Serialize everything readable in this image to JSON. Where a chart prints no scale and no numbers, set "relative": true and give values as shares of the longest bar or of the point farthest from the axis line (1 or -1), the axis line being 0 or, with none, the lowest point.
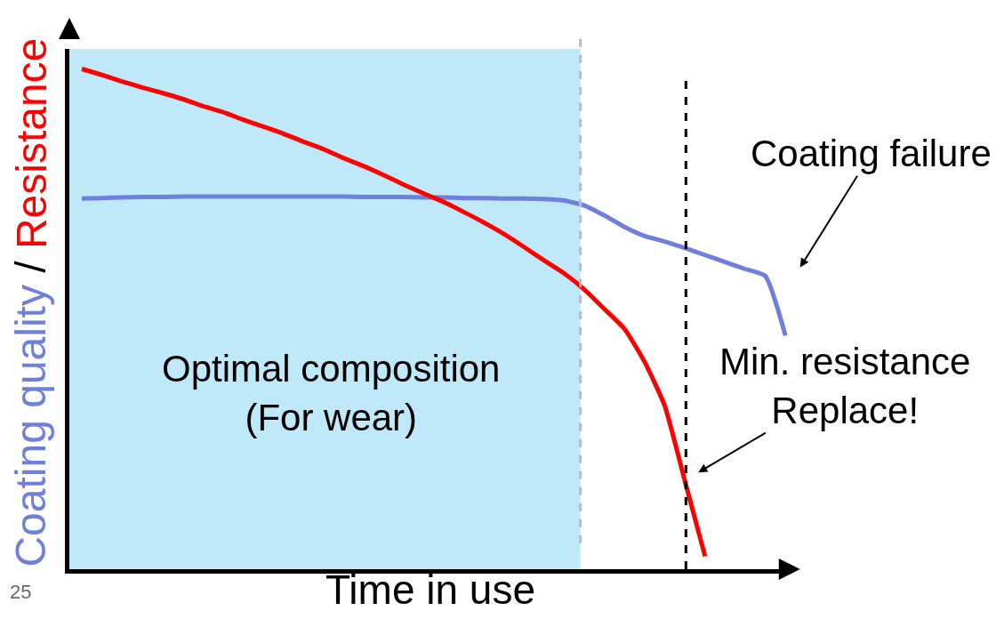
{
  "chart_data": {
    "type": "line",
    "relative": true,
    "xlabel": "Time in use",
    "ylabel": "Coating quality / Resistance",
    "grid": false,
    "legend": false,
    "line_style": "solid",
    "marker": "none",
    "categories": [
      null,
      null,
      null,
      null,
      null,
      null,
      null,
      null,
      null,
      null,
      null,
      null,
      null,
      null,
      null,
      null,
      null,
      null,
      null,
      null,
      null,
      null,
      null,
      null,
      null,
      null,
      null,
      null,
      null,
      null,
      null,
      null,
      null,
      null,
      null,
      null
    ],
    "series": [
      {
        "color": "#6f7fdb",
        "values": [
          0.741,
          0.742,
          0.743,
          0.744,
          0.744,
          0.745,
          0.745,
          0.745,
          0.745,
          0.745,
          0.745,
          0.745,
          0.745,
          0.745,
          0.744,
          0.744,
          0.744,
          0.743,
          0.743,
          0.742,
          0.742,
          0.741,
          0.741,
          0.74,
          0.737,
          0.727,
          0.707,
          0.684,
          0.666,
          0.655,
          0.642,
          0.628,
          0.614,
          0.6,
          0.586,
          0.467
        ]
      },
      {
        "color": "#ff0000",
        "values": [
          1.0,
          0.988,
          0.975,
          0.963,
          0.952,
          0.94,
          0.926,
          0.914,
          0.899,
          0.885,
          0.871,
          0.855,
          0.84,
          0.822,
          0.806,
          0.788,
          0.769,
          0.751,
          0.734,
          0.714,
          0.693,
          0.67,
          0.644,
          0.617,
          0.591,
          0.559,
          0.52,
          0.48,
          0.414,
          0.326,
          0.176,
          0.026,
          null,
          null,
          null,
          null
        ]
      }
    ],
    "annotations": [
      "Optimal composition\n(For wear)",
      "Coating failure",
      "Min. resistance\nReplace!",
      "25"
    ]
  }
}
